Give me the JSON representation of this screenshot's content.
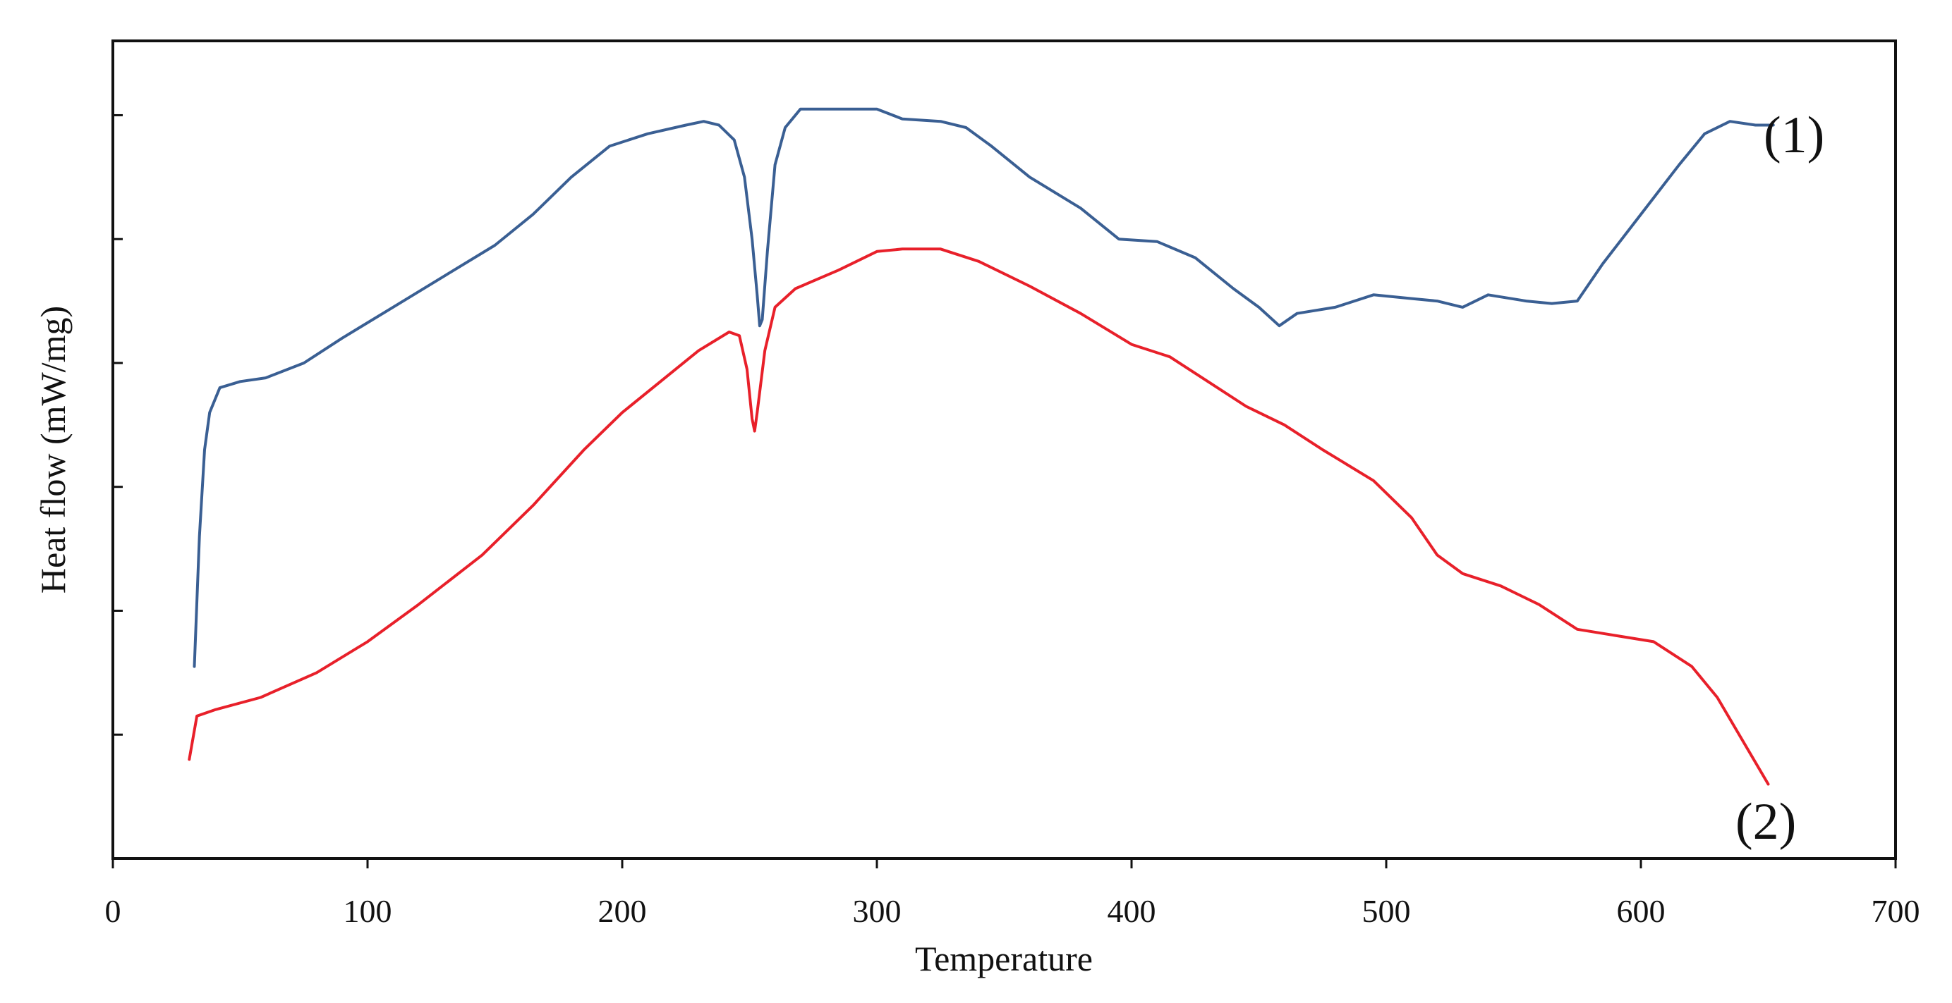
{
  "chart_data": {
    "type": "line",
    "xlabel": "Temperature",
    "ylabel": "Heat flow (mW/mg)",
    "xlim": [
      0,
      700
    ],
    "ylim": [
      0,
      6.6
    ],
    "x_ticks": [
      "0",
      "100",
      "200",
      "300",
      "400",
      "500",
      "600",
      "700"
    ],
    "y_ticks": [
      1,
      2,
      3,
      4,
      5,
      6
    ],
    "y_tick_labels_shown": false,
    "grid": false,
    "legend": "none",
    "series": [
      {
        "name": "(1)",
        "color": "#3a5f93",
        "points": [
          [
            32,
            1.55
          ],
          [
            34,
            2.6
          ],
          [
            36,
            3.3
          ],
          [
            38,
            3.6
          ],
          [
            42,
            3.8
          ],
          [
            50,
            3.85
          ],
          [
            60,
            3.88
          ],
          [
            75,
            4.0
          ],
          [
            90,
            4.2
          ],
          [
            110,
            4.45
          ],
          [
            130,
            4.7
          ],
          [
            150,
            4.95
          ],
          [
            165,
            5.2
          ],
          [
            180,
            5.5
          ],
          [
            195,
            5.75
          ],
          [
            210,
            5.85
          ],
          [
            225,
            5.92
          ],
          [
            232,
            5.95
          ],
          [
            238,
            5.92
          ],
          [
            244,
            5.8
          ],
          [
            248,
            5.5
          ],
          [
            251,
            5.0
          ],
          [
            253,
            4.55
          ],
          [
            254,
            4.3
          ],
          [
            255,
            4.35
          ],
          [
            257,
            4.9
          ],
          [
            260,
            5.6
          ],
          [
            264,
            5.9
          ],
          [
            270,
            6.05
          ],
          [
            285,
            6.05
          ],
          [
            300,
            6.05
          ],
          [
            310,
            5.97
          ],
          [
            325,
            5.95
          ],
          [
            335,
            5.9
          ],
          [
            345,
            5.75
          ],
          [
            360,
            5.5
          ],
          [
            380,
            5.25
          ],
          [
            395,
            5.0
          ],
          [
            410,
            4.98
          ],
          [
            425,
            4.85
          ],
          [
            440,
            4.6
          ],
          [
            450,
            4.45
          ],
          [
            458,
            4.3
          ],
          [
            465,
            4.4
          ],
          [
            480,
            4.45
          ],
          [
            495,
            4.55
          ],
          [
            510,
            4.52
          ],
          [
            520,
            4.5
          ],
          [
            530,
            4.45
          ],
          [
            540,
            4.55
          ],
          [
            555,
            4.5
          ],
          [
            565,
            4.48
          ],
          [
            575,
            4.5
          ],
          [
            585,
            4.8
          ],
          [
            600,
            5.2
          ],
          [
            615,
            5.6
          ],
          [
            625,
            5.85
          ],
          [
            635,
            5.95
          ],
          [
            645,
            5.92
          ],
          [
            652,
            5.92
          ]
        ]
      },
      {
        "name": "(2)",
        "color": "#e8202a",
        "points": [
          [
            30,
            0.8
          ],
          [
            33,
            1.15
          ],
          [
            40,
            1.2
          ],
          [
            58,
            1.3
          ],
          [
            80,
            1.5
          ],
          [
            100,
            1.75
          ],
          [
            120,
            2.05
          ],
          [
            145,
            2.45
          ],
          [
            165,
            2.85
          ],
          [
            185,
            3.3
          ],
          [
            200,
            3.6
          ],
          [
            215,
            3.85
          ],
          [
            230,
            4.1
          ],
          [
            242,
            4.25
          ],
          [
            246,
            4.22
          ],
          [
            249,
            3.95
          ],
          [
            251,
            3.55
          ],
          [
            252,
            3.45
          ],
          [
            253,
            3.6
          ],
          [
            256,
            4.1
          ],
          [
            260,
            4.45
          ],
          [
            268,
            4.6
          ],
          [
            285,
            4.75
          ],
          [
            300,
            4.9
          ],
          [
            310,
            4.92
          ],
          [
            325,
            4.92
          ],
          [
            340,
            4.82
          ],
          [
            360,
            4.62
          ],
          [
            380,
            4.4
          ],
          [
            400,
            4.15
          ],
          [
            415,
            4.05
          ],
          [
            430,
            3.85
          ],
          [
            445,
            3.65
          ],
          [
            460,
            3.5
          ],
          [
            475,
            3.3
          ],
          [
            495,
            3.05
          ],
          [
            510,
            2.75
          ],
          [
            520,
            2.45
          ],
          [
            530,
            2.3
          ],
          [
            545,
            2.2
          ],
          [
            560,
            2.05
          ],
          [
            575,
            1.85
          ],
          [
            590,
            1.8
          ],
          [
            605,
            1.75
          ],
          [
            620,
            1.55
          ],
          [
            630,
            1.3
          ],
          [
            640,
            0.95
          ],
          [
            650,
            0.6
          ]
        ]
      }
    ]
  }
}
